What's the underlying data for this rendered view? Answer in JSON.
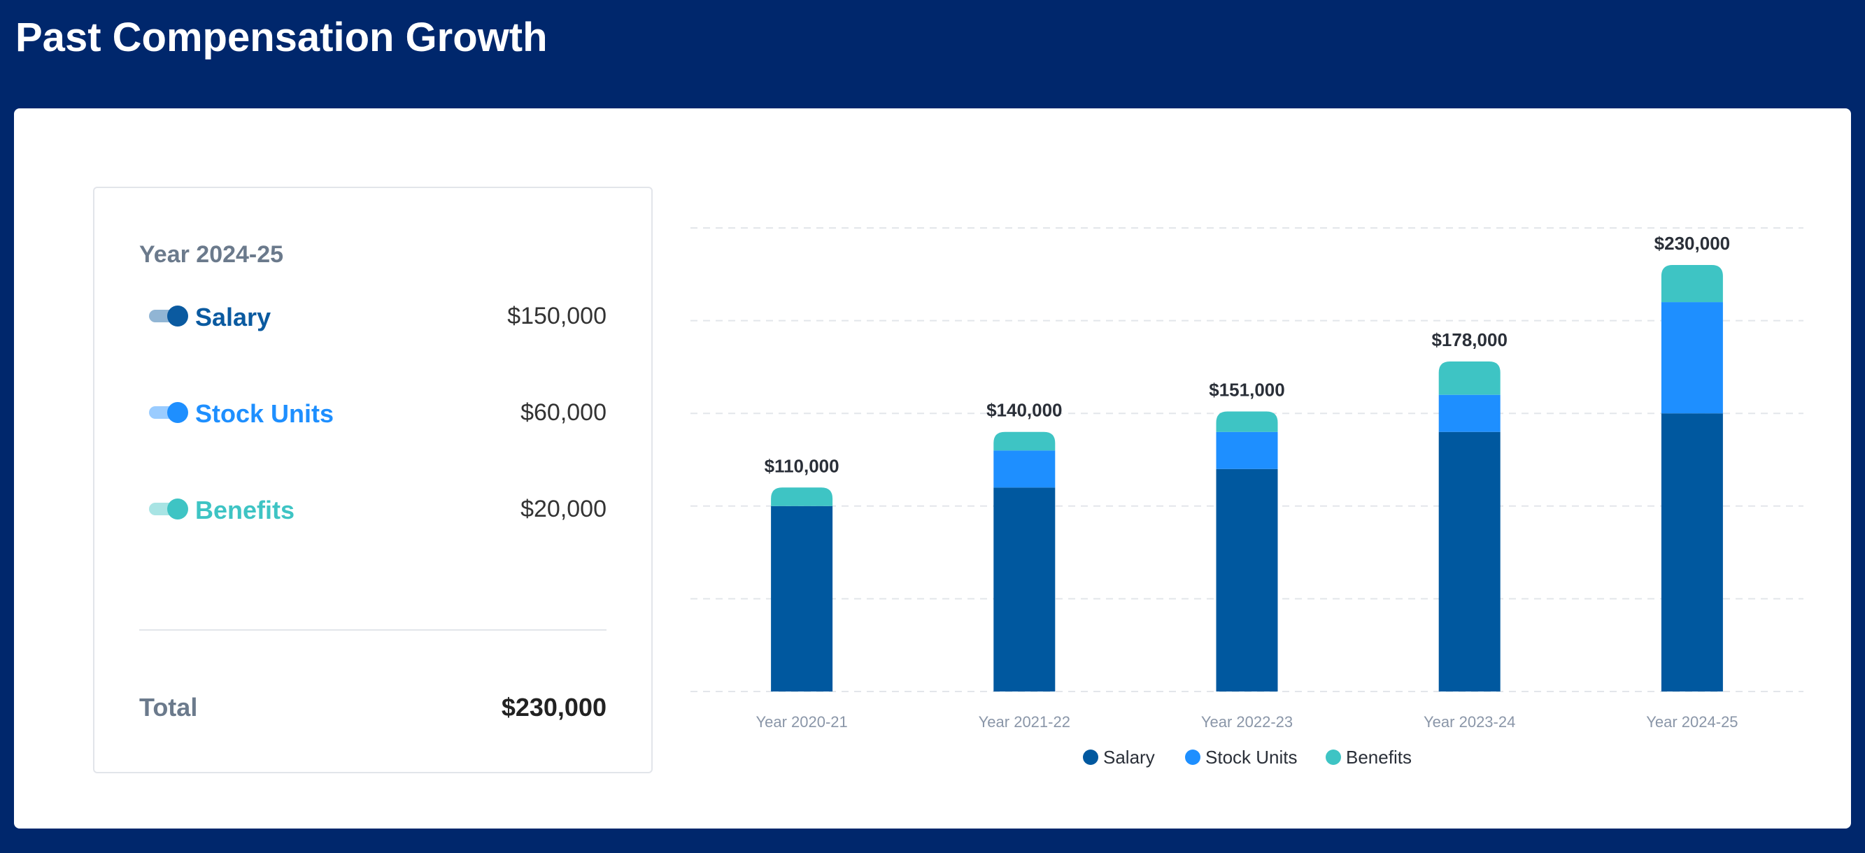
{
  "header": {
    "title": "Past Compensation Growth"
  },
  "panel": {
    "title": "Year 2024-25",
    "items": [
      {
        "label": "Salary",
        "value": "$150,000",
        "color": "#0a5aa0"
      },
      {
        "label": "Stock Units",
        "value": "$60,000",
        "color": "#1e8fff"
      },
      {
        "label": "Benefits",
        "value": "$20,000",
        "color": "#3ec4c4"
      }
    ],
    "total_label": "Total",
    "total_value": "$230,000"
  },
  "chart_data": {
    "type": "stacked_bar",
    "categories": [
      "Year 2020-21",
      "Year 2021-22",
      "Year 2022-23",
      "Year 2023-24",
      "Year 2024-25"
    ],
    "series": [
      {
        "name": "Salary",
        "color": "#00589f",
        "values": [
          100000,
          110000,
          120000,
          140000,
          150000
        ]
      },
      {
        "name": "Stock Units",
        "color": "#1e8fff",
        "values": [
          0,
          20000,
          20000,
          20000,
          60000
        ]
      },
      {
        "name": "Benefits",
        "color": "#3ec4c4",
        "values": [
          10000,
          10000,
          11000,
          18000,
          20000
        ]
      }
    ],
    "totals": [
      110000,
      140000,
      151000,
      178000,
      230000
    ],
    "total_labels": [
      "$110,000",
      "$140,000",
      "$151,000",
      "$178,000",
      "$230,000"
    ],
    "ylim": [
      0,
      250000
    ],
    "yticks": [
      0,
      50000,
      100000,
      150000,
      200000,
      250000
    ],
    "grid": true
  }
}
